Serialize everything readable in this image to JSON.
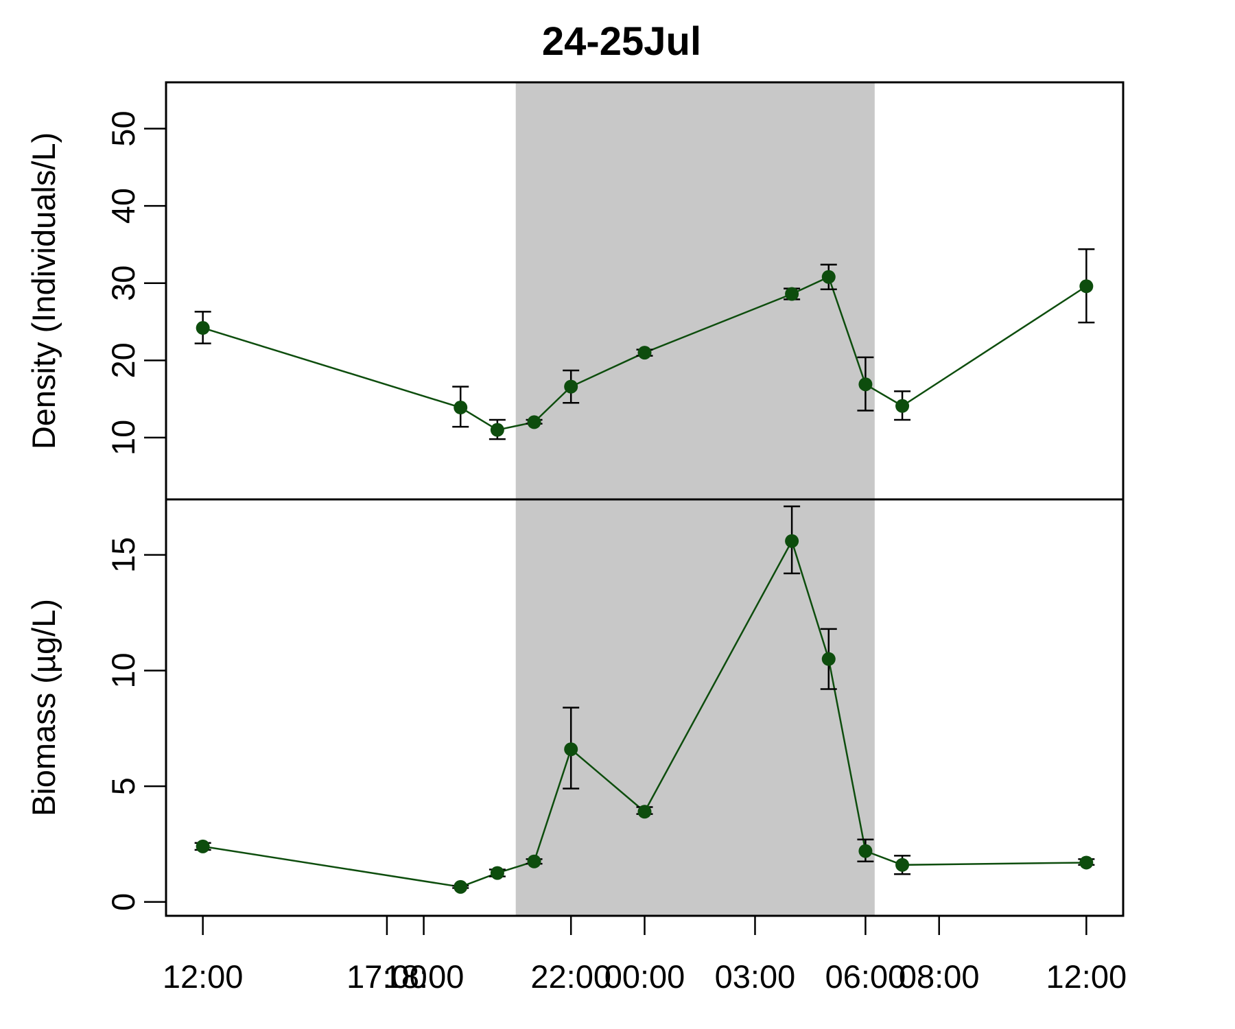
{
  "chart_data": {
    "type": "line",
    "title": "24-25Jul",
    "colors": {
      "series": "#0d4d0d",
      "night_band": "#c8c8c8",
      "error_bar": "#000000"
    },
    "night_band": {
      "start": 20.5,
      "end": 30.25
    },
    "xlim": [
      11,
      37
    ],
    "x_ticks": [
      {
        "value": 12,
        "label": "12:00"
      },
      {
        "value": 17,
        "label": "17:00"
      },
      {
        "value": 18,
        "label": "18:00"
      },
      {
        "value": 22,
        "label": "22:00"
      },
      {
        "value": 24,
        "label": "00:00"
      },
      {
        "value": 27,
        "label": "03:00"
      },
      {
        "value": 30,
        "label": "06:00"
      },
      {
        "value": 32,
        "label": "08:00"
      },
      {
        "value": 36,
        "label": "12:00"
      }
    ],
    "x": [
      12,
      19,
      20,
      21,
      22,
      24,
      28,
      29,
      30,
      31,
      36
    ],
    "panels": [
      {
        "ylabel": "Density (Individuals/L)",
        "ylim": [
          2,
          56
        ],
        "yticks": [
          10,
          20,
          30,
          40,
          50
        ],
        "series": [
          {
            "values": [
              24.2,
              13.9,
              11.0,
              12.0,
              16.6,
              21.0,
              28.6,
              30.8,
              16.9,
              14.1,
              29.6
            ],
            "error_low": [
              22.2,
              11.4,
              9.8,
              11.8,
              14.5,
              20.6,
              27.9,
              29.2,
              13.5,
              12.3,
              24.9
            ],
            "error_high": [
              26.3,
              16.6,
              12.3,
              12.3,
              18.7,
              21.4,
              29.3,
              32.4,
              20.4,
              16.0,
              34.4
            ]
          }
        ]
      },
      {
        "ylabel": "Biomass (µg/L)",
        "ylim": [
          -0.6,
          17.4
        ],
        "yticks": [
          0,
          5,
          10,
          15
        ],
        "series": [
          {
            "values": [
              2.4,
              0.65,
              1.25,
              1.75,
              6.6,
              3.9,
              15.6,
              10.5,
              2.2,
              1.6,
              1.7
            ],
            "error_low": [
              2.25,
              0.6,
              1.1,
              1.65,
              4.9,
              3.8,
              14.2,
              9.2,
              1.75,
              1.2,
              1.6
            ],
            "error_high": [
              2.55,
              0.7,
              1.4,
              1.85,
              8.4,
              4.1,
              17.1,
              11.8,
              2.7,
              2.0,
              1.85
            ]
          }
        ]
      }
    ]
  }
}
